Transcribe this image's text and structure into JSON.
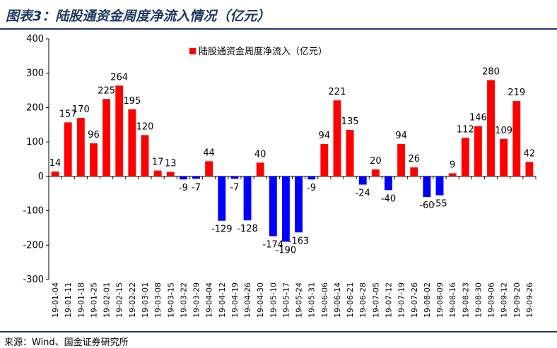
{
  "header": {
    "title": "图表3：陆股通资金周度净流入情况（亿元）"
  },
  "footer": {
    "source": "来源：Wind、国金证券研究所"
  },
  "colors": {
    "positive": "#ff0000",
    "negative": "#0000ff",
    "title": "#1f3864"
  },
  "chart_data": {
    "type": "bar",
    "title": "",
    "xlabel": "",
    "ylabel": "",
    "ylim": [
      -300,
      400
    ],
    "yticks": [
      400,
      300,
      200,
      100,
      0,
      -100,
      -200,
      -300
    ],
    "legend": "top",
    "grid": false,
    "categories": [
      "19-01-04",
      "19-01-11",
      "19-01-18",
      "19-01-25",
      "19-02-01",
      "19-02-15",
      "19-02-22",
      "19-03-01",
      "19-03-08",
      "19-03-15",
      "19-03-22",
      "19-03-29",
      "19-04-04",
      "19-04-12",
      "19-04-19",
      "19-04-26",
      "19-04-30",
      "19-05-10",
      "19-05-17",
      "19-05-24",
      "19-05-31",
      "19-06-06",
      "19-06-14",
      "19-06-21",
      "19-06-28",
      "19-07-05",
      "19-07-12",
      "19-07-19",
      "19-07-26",
      "19-08-02",
      "19-08-09",
      "19-08-16",
      "19-08-23",
      "19-08-30",
      "19-09-06",
      "19-09-12",
      "19-09-20",
      "19-09-26"
    ],
    "series": [
      {
        "name": "陆股通资金周度净流入（亿元）",
        "values": [
          14,
          157,
          170,
          96,
          225,
          264,
          195,
          120,
          17,
          13,
          -9,
          -7,
          44,
          -129,
          -7,
          -128,
          40,
          -174,
          -190,
          -163,
          -9,
          94,
          221,
          135,
          -24,
          20,
          -40,
          94,
          26,
          -60,
          -55,
          9,
          112,
          146,
          280,
          109,
          219,
          42
        ]
      }
    ],
    "data_labels": [
      "14",
      "157",
      "170",
      "96",
      "225",
      "264",
      "195",
      "120",
      "17",
      "13",
      "-9",
      "-7",
      "44",
      "-129",
      "-7",
      "-128",
      "40",
      "-174",
      "-190",
      "-163",
      "-9",
      "94",
      "221",
      "135",
      "-24",
      "20",
      "-40",
      "94",
      "26",
      "-60",
      "-55",
      "9",
      "112",
      "146",
      "280",
      "109",
      "219",
      "42"
    ]
  }
}
